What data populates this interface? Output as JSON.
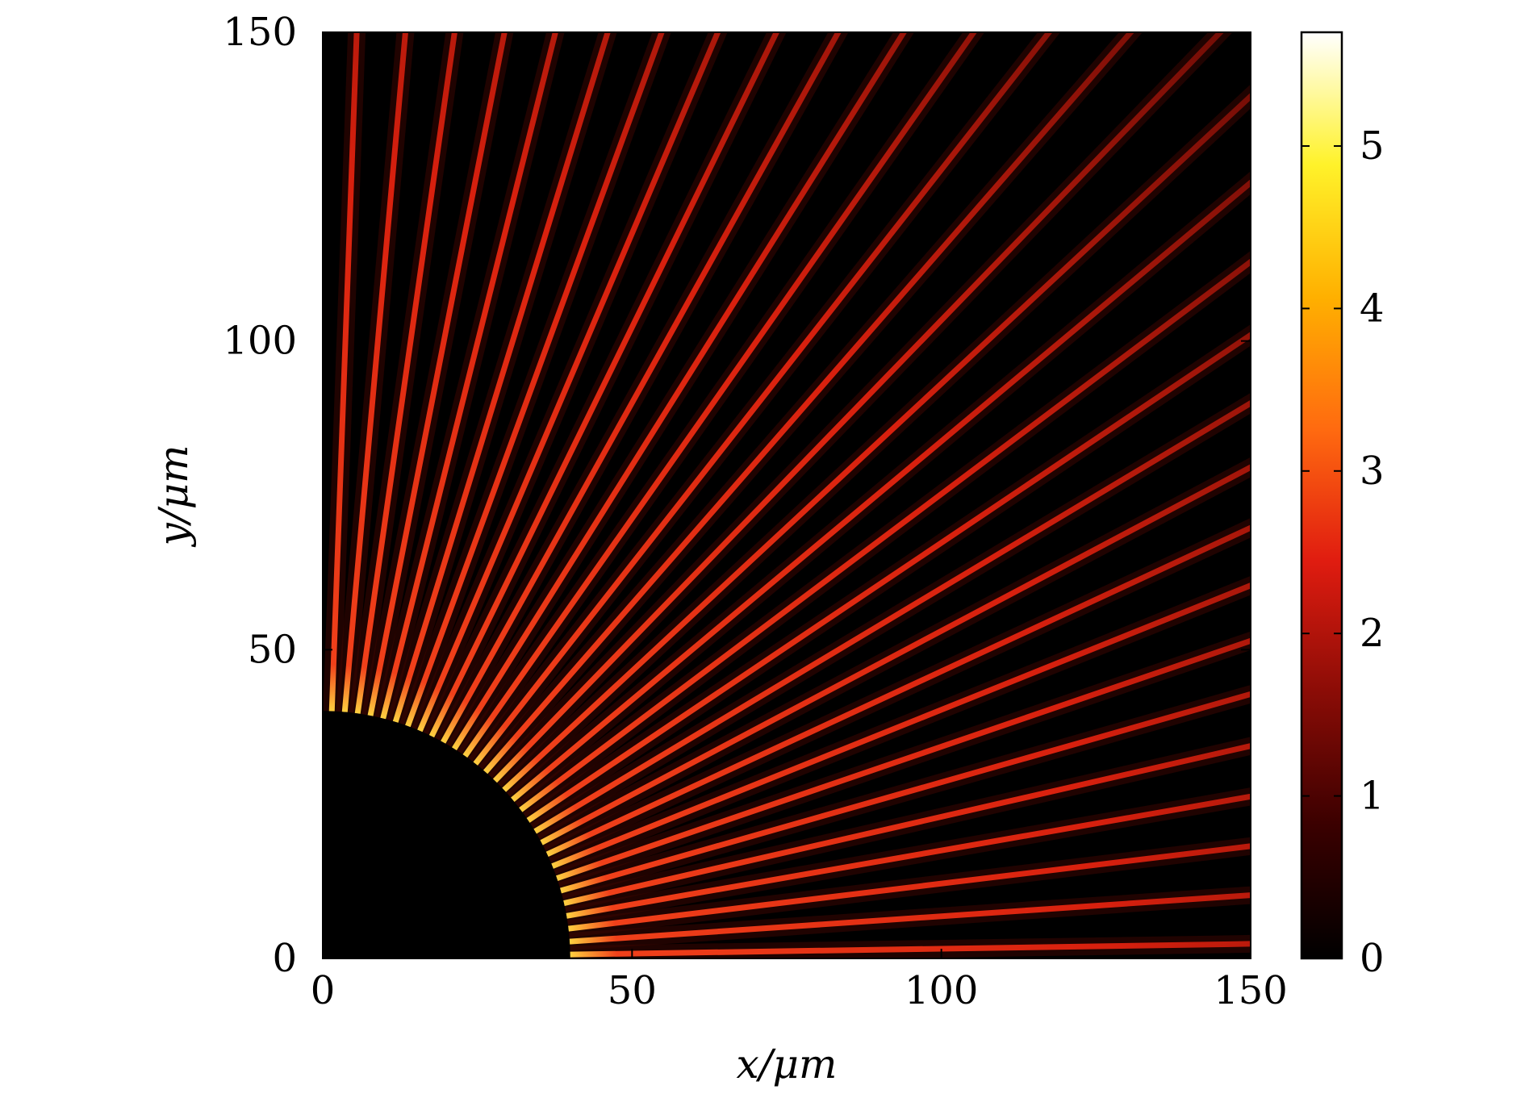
{
  "chart_data": {
    "type": "heatmap",
    "title": "",
    "xlabel": "x/μm",
    "ylabel": "y/μm",
    "xlim": [
      0,
      150
    ],
    "ylim": [
      0,
      150
    ],
    "xticks": [
      0,
      50,
      100,
      150
    ],
    "xtick_labels": [
      "0",
      "50",
      "100",
      "150"
    ],
    "yticks": [
      0,
      50,
      100,
      150
    ],
    "ytick_labels": [
      "0",
      "50",
      "100",
      "150"
    ],
    "grid": false,
    "legend": "none",
    "description_values": {
      "dark_disk_center": [
        0,
        0
      ],
      "dark_disk_radius": 40,
      "ray_count": 30,
      "ray_angle_range_deg": [
        0,
        90
      ]
    },
    "colorbar": {
      "min": 0,
      "max": 5.7,
      "ticks": [
        0,
        1,
        2,
        3,
        4,
        5
      ],
      "tick_labels": [
        "0",
        "1",
        "2",
        "3",
        "4",
        "5"
      ],
      "colormap": "hot",
      "stops": [
        "#000000",
        "#3a0000",
        "#8a0c06",
        "#e01c10",
        "#ff6a10",
        "#ffb000",
        "#fff22a",
        "#ffffff"
      ]
    }
  }
}
